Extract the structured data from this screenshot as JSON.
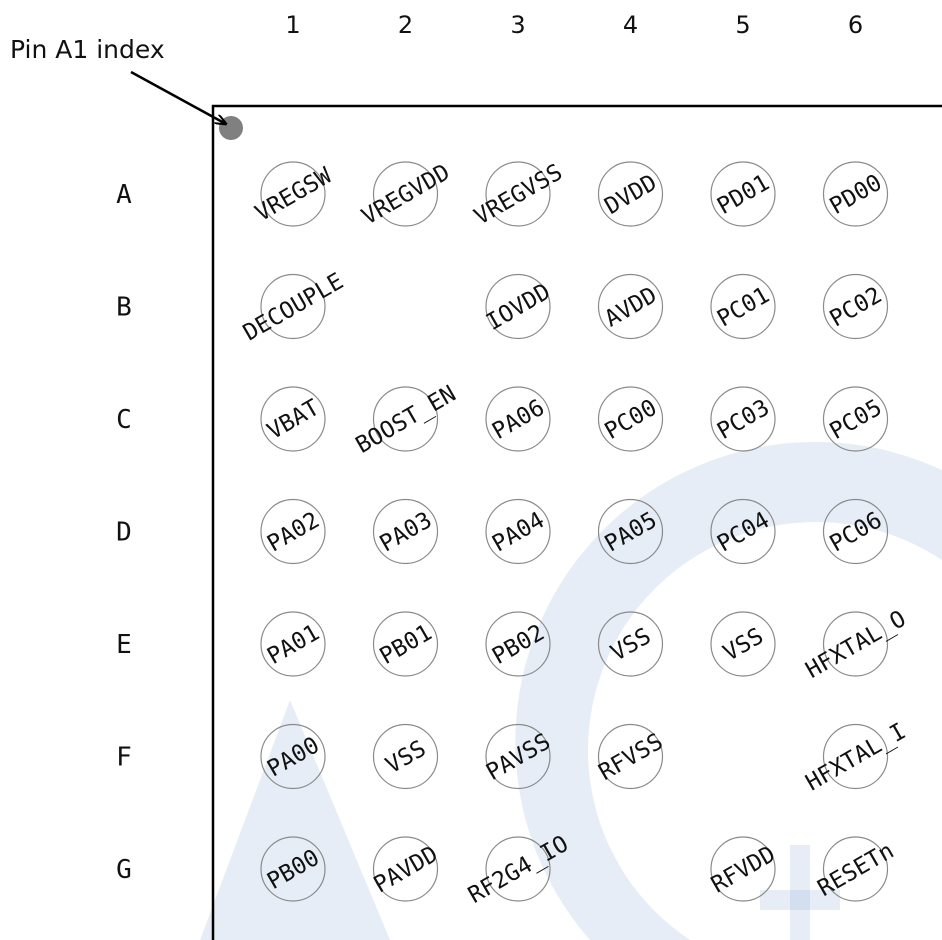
{
  "callout": {
    "label": "Pin A1 index"
  },
  "columns": [
    "1",
    "2",
    "3",
    "4",
    "5",
    "6"
  ],
  "rows": [
    "A",
    "B",
    "C",
    "D",
    "E",
    "F",
    "G"
  ],
  "pins": [
    {
      "name": "VREGSW",
      "row": "A",
      "col": "1"
    },
    {
      "name": "VREGVDD",
      "row": "A",
      "col": "2"
    },
    {
      "name": "VREGVSS",
      "row": "A",
      "col": "3"
    },
    {
      "name": "DVDD",
      "row": "A",
      "col": "4"
    },
    {
      "name": "PD01",
      "row": "A",
      "col": "5"
    },
    {
      "name": "PD00",
      "row": "A",
      "col": "6"
    },
    {
      "name": "DECOUPLE",
      "row": "B",
      "col": "1"
    },
    {
      "name": "IOVDD",
      "row": "B",
      "col": "3"
    },
    {
      "name": "AVDD",
      "row": "B",
      "col": "4"
    },
    {
      "name": "PC01",
      "row": "B",
      "col": "5"
    },
    {
      "name": "PC02",
      "row": "B",
      "col": "6"
    },
    {
      "name": "VBAT",
      "row": "C",
      "col": "1"
    },
    {
      "name": "BOOST_EN",
      "row": "C",
      "col": "2"
    },
    {
      "name": "PA06",
      "row": "C",
      "col": "3"
    },
    {
      "name": "PC00",
      "row": "C",
      "col": "4"
    },
    {
      "name": "PC03",
      "row": "C",
      "col": "5"
    },
    {
      "name": "PC05",
      "row": "C",
      "col": "6"
    },
    {
      "name": "PA02",
      "row": "D",
      "col": "1"
    },
    {
      "name": "PA03",
      "row": "D",
      "col": "2"
    },
    {
      "name": "PA04",
      "row": "D",
      "col": "3"
    },
    {
      "name": "PA05",
      "row": "D",
      "col": "4"
    },
    {
      "name": "PC04",
      "row": "D",
      "col": "5"
    },
    {
      "name": "PC06",
      "row": "D",
      "col": "6"
    },
    {
      "name": "PA01",
      "row": "E",
      "col": "1"
    },
    {
      "name": "PB01",
      "row": "E",
      "col": "2"
    },
    {
      "name": "PB02",
      "row": "E",
      "col": "3"
    },
    {
      "name": "VSS",
      "row": "E",
      "col": "4"
    },
    {
      "name": "VSS",
      "row": "E",
      "col": "5"
    },
    {
      "name": "HFXTAL_O",
      "row": "E",
      "col": "6"
    },
    {
      "name": "PA00",
      "row": "F",
      "col": "1"
    },
    {
      "name": "VSS",
      "row": "F",
      "col": "2"
    },
    {
      "name": "PAVSS",
      "row": "F",
      "col": "3"
    },
    {
      "name": "RFVSS",
      "row": "F",
      "col": "4"
    },
    {
      "name": "HFXTAL_I",
      "row": "F",
      "col": "6"
    },
    {
      "name": "PB00",
      "row": "G",
      "col": "1"
    },
    {
      "name": "PAVDD",
      "row": "G",
      "col": "2"
    },
    {
      "name": "RF2G4_IO",
      "row": "G",
      "col": "3"
    },
    {
      "name": "RFVDD",
      "row": "G",
      "col": "5"
    },
    {
      "name": "RESETn",
      "row": "G",
      "col": "6"
    }
  ],
  "colors": {
    "pin_index_dot": "#808080",
    "pin_outline": "#8a8a8a",
    "outline": "#000000",
    "watermark": "#6b8fc6"
  }
}
